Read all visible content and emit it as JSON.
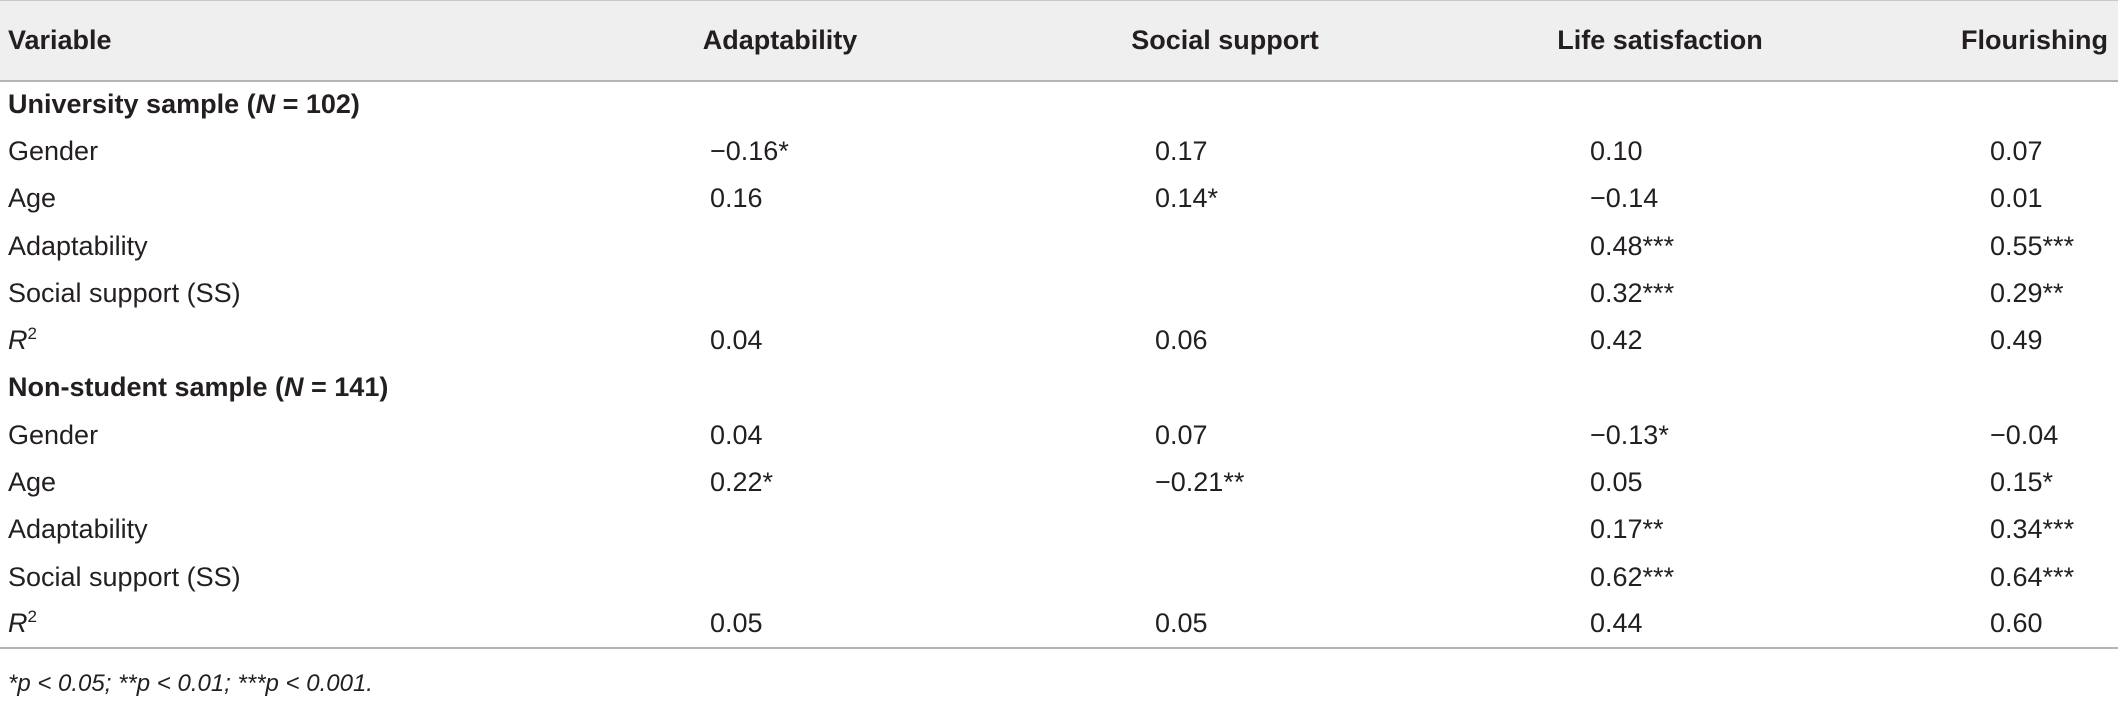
{
  "table": {
    "columns": [
      "Variable",
      "Adaptability",
      "Social support",
      "Life satisfaction",
      "Flourishing"
    ],
    "sections": [
      {
        "title_prefix": "University sample (",
        "title_n": "N",
        "title_suffix": " = 102)",
        "rows": [
          {
            "label": "Gender",
            "values": [
              "−0.16*",
              "0.17",
              "0.10",
              "0.07"
            ]
          },
          {
            "label": "Age",
            "values": [
              "0.16",
              "0.14*",
              "−0.14",
              "0.01"
            ]
          },
          {
            "label": "Adaptability",
            "values": [
              "",
              "",
              "0.48***",
              "0.55***"
            ]
          },
          {
            "label": "Social support (SS)",
            "values": [
              "",
              "",
              "0.32***",
              "0.29**"
            ]
          },
          {
            "label_italic": "R",
            "label_sup": "2",
            "values": [
              "0.04",
              "0.06",
              "0.42",
              "0.49"
            ]
          }
        ]
      },
      {
        "title_prefix": "Non-student sample (",
        "title_n": "N",
        "title_suffix": " = 141)",
        "rows": [
          {
            "label": "Gender",
            "values": [
              "0.04",
              "0.07",
              "−0.13*",
              "−0.04"
            ]
          },
          {
            "label": "Age",
            "values": [
              "0.22*",
              "−0.21**",
              "0.05",
              "0.15*"
            ]
          },
          {
            "label": "Adaptability",
            "values": [
              "",
              "",
              "0.17**",
              "0.34***"
            ]
          },
          {
            "label": "Social support (SS)",
            "values": [
              "",
              "",
              "0.62***",
              "0.64***"
            ]
          },
          {
            "label_italic": "R",
            "label_sup": "2",
            "values": [
              "0.05",
              "0.05",
              "0.44",
              "0.60"
            ]
          }
        ]
      }
    ],
    "note": "*p < 0.05; **p < 0.01; ***p < 0.001."
  }
}
